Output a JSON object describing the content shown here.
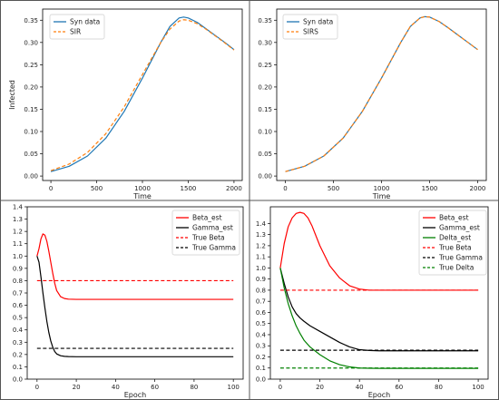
{
  "chart_data": [
    {
      "type": "line",
      "xlabel": "Time",
      "ylabel": "Infected",
      "xlim": [
        -90,
        2090
      ],
      "ylim": [
        -0.01,
        0.375
      ],
      "xticks": [
        0,
        500,
        1000,
        1500,
        2000
      ],
      "yticks": [
        0.0,
        0.05,
        0.1,
        0.15,
        0.2,
        0.25,
        0.3,
        0.35
      ],
      "ytick_labels": [
        "0.00",
        "0.05",
        "0.10",
        "0.15",
        "0.20",
        "0.25",
        "0.30",
        "0.35"
      ],
      "legend_position": "top-left",
      "series": [
        {
          "name": "Syn data",
          "color": "#1f77b4",
          "dash": "solid",
          "x": [
            0,
            200,
            400,
            600,
            800,
            1000,
            1200,
            1300,
            1400,
            1450,
            1500,
            1600,
            1700,
            1800,
            1900,
            2000
          ],
          "y": [
            0.01,
            0.022,
            0.045,
            0.085,
            0.145,
            0.22,
            0.3,
            0.336,
            0.355,
            0.357,
            0.355,
            0.345,
            0.33,
            0.315,
            0.3,
            0.284
          ]
        },
        {
          "name": "SIR",
          "color": "#ff7f0e",
          "dash": "dashed",
          "x": [
            0,
            200,
            400,
            600,
            800,
            1000,
            1200,
            1300,
            1400,
            1450,
            1500,
            1600,
            1700,
            1800,
            1900,
            2000
          ],
          "y": [
            0.012,
            0.027,
            0.053,
            0.095,
            0.155,
            0.228,
            0.3,
            0.33,
            0.348,
            0.351,
            0.35,
            0.342,
            0.329,
            0.314,
            0.299,
            0.283
          ]
        }
      ]
    },
    {
      "type": "line",
      "xlabel": "Time",
      "ylabel": "",
      "xlim": [
        -90,
        2090
      ],
      "ylim": [
        -0.01,
        0.375
      ],
      "xticks": [
        0,
        500,
        1000,
        1500,
        2000
      ],
      "yticks": [
        0.0,
        0.05,
        0.1,
        0.15,
        0.2,
        0.25,
        0.3,
        0.35
      ],
      "ytick_labels": [
        "0.00",
        "0.05",
        "0.10",
        "0.15",
        "0.20",
        "0.25",
        "0.30",
        "0.35"
      ],
      "legend_position": "top-left",
      "series": [
        {
          "name": "Syn data",
          "color": "#1f77b4",
          "dash": "solid",
          "x": [
            0,
            200,
            400,
            600,
            800,
            1000,
            1200,
            1300,
            1400,
            1450,
            1500,
            1600,
            1700,
            1800,
            1900,
            2000
          ],
          "y": [
            0.01,
            0.022,
            0.045,
            0.085,
            0.145,
            0.22,
            0.3,
            0.336,
            0.355,
            0.358,
            0.357,
            0.347,
            0.332,
            0.316,
            0.3,
            0.284
          ]
        },
        {
          "name": "SIRS",
          "color": "#ff7f0e",
          "dash": "dashed",
          "x": [
            0,
            200,
            400,
            600,
            800,
            1000,
            1200,
            1300,
            1400,
            1450,
            1500,
            1600,
            1700,
            1800,
            1900,
            2000
          ],
          "y": [
            0.01,
            0.022,
            0.045,
            0.085,
            0.145,
            0.22,
            0.3,
            0.336,
            0.355,
            0.358,
            0.357,
            0.347,
            0.332,
            0.316,
            0.3,
            0.284
          ]
        }
      ]
    },
    {
      "type": "line",
      "xlabel": "Epoch",
      "ylabel": "",
      "xlim": [
        -5,
        105
      ],
      "ylim": [
        0.0,
        1.4
      ],
      "xticks": [
        0,
        20,
        40,
        60,
        80,
        100
      ],
      "yticks": [
        0.0,
        0.1,
        0.2,
        0.3,
        0.4,
        0.5,
        0.6,
        0.7,
        0.8,
        0.9,
        1.0,
        1.1,
        1.2,
        1.3,
        1.4
      ],
      "ytick_labels": [
        "0.0",
        "0.1",
        "0.2",
        "0.3",
        "0.4",
        "0.5",
        "0.6",
        "0.7",
        "0.8",
        "0.9",
        "1.0",
        "1.1",
        "1.2",
        "1.3",
        "1.4"
      ],
      "legend_position": "top-right",
      "series": [
        {
          "name": "Beta_est",
          "color": "#ff0000",
          "dash": "solid",
          "x": [
            0,
            1,
            2,
            3,
            4,
            5,
            6,
            7,
            8,
            9,
            10,
            12,
            14,
            16,
            20,
            30,
            50,
            100
          ],
          "y": [
            1.0,
            1.06,
            1.14,
            1.18,
            1.17,
            1.12,
            1.04,
            0.95,
            0.86,
            0.78,
            0.72,
            0.67,
            0.655,
            0.65,
            0.648,
            0.648,
            0.648,
            0.648
          ]
        },
        {
          "name": "Gamma_est",
          "color": "#000000",
          "dash": "solid",
          "x": [
            0,
            1,
            2,
            3,
            4,
            5,
            6,
            7,
            8,
            9,
            10,
            12,
            14,
            16,
            20,
            30,
            50,
            100
          ],
          "y": [
            1.0,
            0.95,
            0.83,
            0.7,
            0.58,
            0.47,
            0.38,
            0.31,
            0.26,
            0.225,
            0.205,
            0.19,
            0.185,
            0.183,
            0.182,
            0.182,
            0.182,
            0.182
          ]
        },
        {
          "name": "True Beta",
          "color": "#ff0000",
          "dash": "dashed",
          "x": [
            0,
            100
          ],
          "y": [
            0.8,
            0.8
          ]
        },
        {
          "name": "True Gamma",
          "color": "#000000",
          "dash": "dashed",
          "x": [
            0,
            100
          ],
          "y": [
            0.25,
            0.25
          ]
        }
      ]
    },
    {
      "type": "line",
      "xlabel": "Epoch",
      "ylabel": "",
      "xlim": [
        -5,
        105
      ],
      "ylim": [
        0.0,
        1.55
      ],
      "xticks": [
        0,
        20,
        40,
        60,
        80,
        100
      ],
      "yticks": [
        0.0,
        0.1,
        0.2,
        0.3,
        0.4,
        0.5,
        0.6,
        0.7,
        0.8,
        0.9,
        1.0,
        1.1,
        1.2,
        1.3,
        1.4
      ],
      "ytick_labels": [
        "0.0",
        "0.1",
        "0.2",
        "0.3",
        "0.4",
        "0.5",
        "0.6",
        "0.7",
        "0.8",
        "0.9",
        "1.0",
        "1.1",
        "1.2",
        "1.3",
        "1.4"
      ],
      "legend_position": "top-right",
      "series": [
        {
          "name": "Beta_est",
          "color": "#ff0000",
          "dash": "solid",
          "x": [
            0,
            2,
            4,
            6,
            8,
            10,
            12,
            14,
            16,
            20,
            25,
            30,
            35,
            40,
            45,
            50,
            60,
            100
          ],
          "y": [
            1.0,
            1.22,
            1.37,
            1.45,
            1.49,
            1.5,
            1.49,
            1.45,
            1.38,
            1.2,
            1.02,
            0.91,
            0.84,
            0.81,
            0.8,
            0.8,
            0.8,
            0.8
          ]
        },
        {
          "name": "Gamma_est",
          "color": "#000000",
          "dash": "solid",
          "x": [
            0,
            2,
            4,
            6,
            8,
            10,
            12,
            15,
            20,
            25,
            30,
            35,
            40,
            45,
            50,
            60,
            100
          ],
          "y": [
            1.0,
            0.86,
            0.74,
            0.65,
            0.59,
            0.55,
            0.52,
            0.48,
            0.43,
            0.38,
            0.33,
            0.29,
            0.265,
            0.258,
            0.255,
            0.255,
            0.255
          ]
        },
        {
          "name": "Delta_est",
          "color": "#008000",
          "dash": "solid",
          "x": [
            0,
            2,
            4,
            6,
            8,
            10,
            12,
            15,
            20,
            25,
            30,
            35,
            40,
            45,
            50,
            60,
            100
          ],
          "y": [
            1.0,
            0.82,
            0.68,
            0.57,
            0.48,
            0.41,
            0.35,
            0.29,
            0.22,
            0.165,
            0.13,
            0.11,
            0.1,
            0.098,
            0.097,
            0.097,
            0.097
          ]
        },
        {
          "name": "True Beta",
          "color": "#ff0000",
          "dash": "dashed",
          "x": [
            0,
            100
          ],
          "y": [
            0.8,
            0.8
          ]
        },
        {
          "name": "True Gamma",
          "color": "#000000",
          "dash": "dashed",
          "x": [
            0,
            100
          ],
          "y": [
            0.26,
            0.26
          ]
        },
        {
          "name": "True Delta",
          "color": "#008000",
          "dash": "dashed",
          "x": [
            0,
            100
          ],
          "y": [
            0.1,
            0.1
          ]
        }
      ]
    }
  ]
}
